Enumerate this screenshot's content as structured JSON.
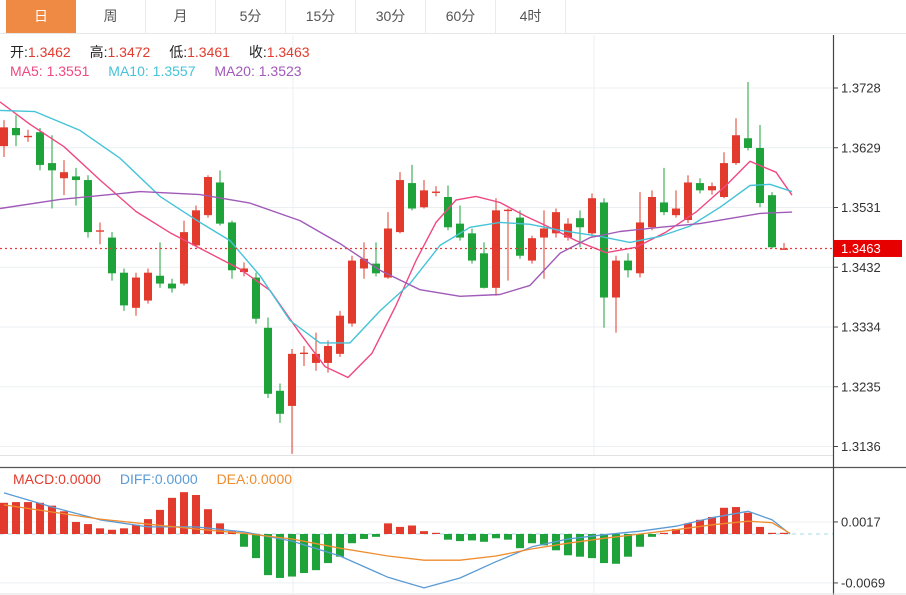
{
  "tabs": {
    "items": [
      {
        "label": "日",
        "active": true
      },
      {
        "label": "周",
        "active": false
      },
      {
        "label": "月",
        "active": false
      },
      {
        "label": "5分",
        "active": false
      },
      {
        "label": "15分",
        "active": false
      },
      {
        "label": "30分",
        "active": false
      },
      {
        "label": "60分",
        "active": false
      },
      {
        "label": "4时",
        "active": false
      }
    ]
  },
  "quote": {
    "open_label": "开:",
    "open": "1.3462",
    "high_label": "高:",
    "high": "1.3472",
    "low_label": "低:",
    "low": "1.3461",
    "close_label": "收:",
    "close": "1.3463"
  },
  "ma_info": {
    "ma5_label": "MA5:",
    "ma5": "1.3551",
    "ma10_label": "MA10:",
    "ma10": "1.3557",
    "ma20_label": "MA20:",
    "ma20": "1.3523"
  },
  "macd_info": {
    "macd_label": "MACD:",
    "macd": "0.0000",
    "diff_label": "DIFF:",
    "diff": "0.0000",
    "dea_label": "DEA:",
    "dea": "0.0000"
  },
  "colors": {
    "up": "#e23b2e",
    "down": "#1ea33b",
    "tab_active_bg": "#ef8a45",
    "ma5": "#ef4883",
    "ma10": "#45c3d8",
    "ma20": "#a05ab8",
    "diff": "#5b9bd5",
    "dea": "#ee8c2e",
    "badge_bg": "#e60000",
    "badge_text": "#ffffff",
    "grid": "#eceff1",
    "axis_line": "#444444",
    "axis_text": "#333333",
    "price_dotted": "#e23b3b",
    "zero_dashed": "#a6d9e8"
  },
  "chart_data": {
    "type": "candlestick",
    "title": "",
    "legend": [
      "MA5",
      "MA10",
      "MA20",
      "MACD",
      "DIFF",
      "DEA"
    ],
    "main_panel": {
      "price_axis_ticks": [
        1.3728,
        1.3629,
        1.3531,
        1.3432,
        1.3334,
        1.3235,
        1.3136
      ],
      "current_price": 1.3463,
      "current_price_label": "1.3463",
      "grid_vertical_x": [
        293,
        594
      ],
      "candles_ohlc": [
        [
          1.3632,
          1.3675,
          1.3614,
          1.3663
        ],
        [
          1.3662,
          1.3683,
          1.3632,
          1.365
        ],
        [
          1.3648,
          1.3659,
          1.3639,
          1.3649
        ],
        [
          1.3655,
          1.3662,
          1.3592,
          1.3601
        ],
        [
          1.3604,
          1.365,
          1.3529,
          1.3592
        ],
        [
          1.3579,
          1.3609,
          1.3551,
          1.3589
        ],
        [
          1.3582,
          1.3596,
          1.3534,
          1.3576
        ],
        [
          1.3576,
          1.3584,
          1.3481,
          1.349
        ],
        [
          1.3492,
          1.3506,
          1.347,
          1.3493
        ],
        [
          1.3481,
          1.349,
          1.341,
          1.3422
        ],
        [
          1.3423,
          1.343,
          1.336,
          1.3369
        ],
        [
          1.3365,
          1.3423,
          1.3352,
          1.3415
        ],
        [
          1.3377,
          1.343,
          1.3372,
          1.3423
        ],
        [
          1.3418,
          1.3473,
          1.3398,
          1.3405
        ],
        [
          1.3405,
          1.3413,
          1.339,
          1.3397
        ],
        [
          1.3405,
          1.3509,
          1.3402,
          1.349
        ],
        [
          1.3468,
          1.3534,
          1.3465,
          1.3526
        ],
        [
          1.3518,
          1.3584,
          1.3514,
          1.3581
        ],
        [
          1.3572,
          1.3592,
          1.3501,
          1.3504
        ],
        [
          1.3506,
          1.3509,
          1.3413,
          1.3427
        ],
        [
          1.3424,
          1.344,
          1.3417,
          1.343
        ],
        [
          1.3415,
          1.3423,
          1.3339,
          1.3347
        ],
        [
          1.3332,
          1.3349,
          1.3216,
          1.3223
        ],
        [
          1.3228,
          1.324,
          1.3175,
          1.319
        ],
        [
          1.3203,
          1.3297,
          1.3124,
          1.3289
        ],
        [
          1.3289,
          1.3302,
          1.3269,
          1.3291
        ],
        [
          1.3274,
          1.3324,
          1.3261,
          1.3289
        ],
        [
          1.3274,
          1.3311,
          1.3258,
          1.3302
        ],
        [
          1.3289,
          1.336,
          1.3284,
          1.3352
        ],
        [
          1.3339,
          1.3451,
          1.3334,
          1.3443
        ],
        [
          1.343,
          1.3473,
          1.3413,
          1.3446
        ],
        [
          1.3438,
          1.3473,
          1.3417,
          1.3422
        ],
        [
          1.3415,
          1.3523,
          1.3413,
          1.3496
        ],
        [
          1.349,
          1.3589,
          1.3488,
          1.3576
        ],
        [
          1.3571,
          1.3601,
          1.3526,
          1.3529
        ],
        [
          1.3531,
          1.3576,
          1.3529,
          1.3559
        ],
        [
          1.3555,
          1.3566,
          1.3549,
          1.3557
        ],
        [
          1.3548,
          1.3567,
          1.3493,
          1.3498
        ],
        [
          1.3504,
          1.3534,
          1.3476,
          1.3481
        ],
        [
          1.3488,
          1.3496,
          1.3438,
          1.3443
        ],
        [
          1.3455,
          1.3473,
          1.3397,
          1.3398
        ],
        [
          1.3398,
          1.3546,
          1.3385,
          1.3526
        ],
        [
          1.3525,
          1.3529,
          1.341,
          1.3527
        ],
        [
          1.3514,
          1.3526,
          1.3446,
          1.3451
        ],
        [
          1.3443,
          1.3484,
          1.3438,
          1.348
        ],
        [
          1.3481,
          1.3526,
          1.3413,
          1.3496
        ],
        [
          1.3488,
          1.3529,
          1.3481,
          1.3523
        ],
        [
          1.3481,
          1.3513,
          1.3476,
          1.3504
        ],
        [
          1.3513,
          1.3526,
          1.3465,
          1.3498
        ],
        [
          1.3488,
          1.3554,
          1.3481,
          1.3546
        ],
        [
          1.3539,
          1.3546,
          1.3332,
          1.3382
        ],
        [
          1.3382,
          1.3451,
          1.3324,
          1.3443
        ],
        [
          1.3443,
          1.3455,
          1.3415,
          1.3427
        ],
        [
          1.3422,
          1.3556,
          1.3415,
          1.3506
        ],
        [
          1.3498,
          1.3559,
          1.3493,
          1.3548
        ],
        [
          1.3539,
          1.3596,
          1.3518,
          1.3523
        ],
        [
          1.3518,
          1.3559,
          1.3514,
          1.3529
        ],
        [
          1.351,
          1.3584,
          1.3505,
          1.3572
        ],
        [
          1.3571,
          1.3579,
          1.3554,
          1.3559
        ],
        [
          1.3559,
          1.3572,
          1.3552,
          1.3566
        ],
        [
          1.3548,
          1.3622,
          1.3546,
          1.3604
        ],
        [
          1.3604,
          1.3678,
          1.3601,
          1.365
        ],
        [
          1.3645,
          1.3738,
          1.3625,
          1.3629
        ],
        [
          1.3629,
          1.3667,
          1.3531,
          1.3538
        ],
        [
          1.3551,
          1.3556,
          1.3463,
          1.3465
        ],
        [
          1.3462,
          1.3472,
          1.3461,
          1.3463
        ]
      ],
      "ma5_line": [
        [
          0,
          1.3705
        ],
        [
          30,
          1.3668
        ],
        [
          64,
          1.3631
        ],
        [
          100,
          1.3576
        ],
        [
          136,
          1.3524
        ],
        [
          170,
          1.3489
        ],
        [
          205,
          1.3459
        ],
        [
          240,
          1.3429
        ],
        [
          270,
          1.3394
        ],
        [
          300,
          1.3323
        ],
        [
          325,
          1.3268
        ],
        [
          348,
          1.325
        ],
        [
          372,
          1.329
        ],
        [
          396,
          1.3369
        ],
        [
          416,
          1.3443
        ],
        [
          436,
          1.3506
        ],
        [
          456,
          1.3543
        ],
        [
          476,
          1.3549
        ],
        [
          500,
          1.3539
        ],
        [
          526,
          1.3516
        ],
        [
          552,
          1.3496
        ],
        [
          576,
          1.3476
        ],
        [
          606,
          1.3456
        ],
        [
          636,
          1.3465
        ],
        [
          666,
          1.349
        ],
        [
          696,
          1.3523
        ],
        [
          726,
          1.3567
        ],
        [
          750,
          1.3607
        ],
        [
          776,
          1.3589
        ],
        [
          792,
          1.3551
        ]
      ],
      "ma10_line": [
        [
          0,
          1.3691
        ],
        [
          35,
          1.3689
        ],
        [
          80,
          1.3658
        ],
        [
          120,
          1.3612
        ],
        [
          160,
          1.3549
        ],
        [
          200,
          1.3506
        ],
        [
          230,
          1.3476
        ],
        [
          260,
          1.3418
        ],
        [
          290,
          1.3344
        ],
        [
          320,
          1.3307
        ],
        [
          350,
          1.3307
        ],
        [
          380,
          1.336
        ],
        [
          410,
          1.3405
        ],
        [
          440,
          1.3468
        ],
        [
          470,
          1.3498
        ],
        [
          500,
          1.3506
        ],
        [
          530,
          1.3503
        ],
        [
          560,
          1.3493
        ],
        [
          600,
          1.3483
        ],
        [
          630,
          1.3473
        ],
        [
          660,
          1.3483
        ],
        [
          690,
          1.35
        ],
        [
          720,
          1.3531
        ],
        [
          750,
          1.3567
        ],
        [
          770,
          1.3569
        ],
        [
          792,
          1.3557
        ]
      ],
      "ma20_line": [
        [
          0,
          1.3529
        ],
        [
          60,
          1.3544
        ],
        [
          140,
          1.3557
        ],
        [
          200,
          1.3552
        ],
        [
          250,
          1.3538
        ],
        [
          300,
          1.3509
        ],
        [
          340,
          1.3471
        ],
        [
          380,
          1.3427
        ],
        [
          420,
          1.3395
        ],
        [
          460,
          1.3384
        ],
        [
          500,
          1.3387
        ],
        [
          530,
          1.3402
        ],
        [
          560,
          1.3455
        ],
        [
          590,
          1.3481
        ],
        [
          620,
          1.3491
        ],
        [
          660,
          1.3498
        ],
        [
          700,
          1.3504
        ],
        [
          760,
          1.3521
        ],
        [
          792,
          1.3523
        ]
      ]
    },
    "macd_panel": {
      "axis_ticks": [
        0.0017,
        -0.0069
      ],
      "axis_tick_labels": [
        "0.0017",
        "-0.0069"
      ],
      "histogram": [
        0.0044,
        0.0045,
        0.0045,
        0.0044,
        0.004,
        0.0032,
        0.0017,
        0.0014,
        0.0008,
        0.0006,
        0.0008,
        0.0013,
        0.0021,
        0.0034,
        0.0051,
        0.0059,
        0.0055,
        0.0035,
        0.0015,
        0.0004,
        -0.0018,
        -0.0034,
        -0.0058,
        -0.0062,
        -0.006,
        -0.0055,
        -0.0051,
        -0.0041,
        -0.0032,
        -0.0013,
        -0.0007,
        -0.0004,
        0.0015,
        0.001,
        0.0012,
        0.0004,
        0.0001,
        -0.0008,
        -0.001,
        -0.0009,
        -0.0011,
        -0.0006,
        -0.0008,
        -0.002,
        -0.0013,
        -0.0016,
        -0.0023,
        -0.003,
        -0.0032,
        -0.0034,
        -0.0041,
        -0.0042,
        -0.0032,
        -0.0018,
        -0.0004,
        0.0001,
        0.0007,
        0.0015,
        0.002,
        0.0024,
        0.0037,
        0.0038,
        0.003,
        0.001,
        0.0001,
        0.0
      ],
      "diff_line": [
        [
          4,
          0.0058
        ],
        [
          52,
          0.0038
        ],
        [
          100,
          0.002
        ],
        [
          148,
          0.001
        ],
        [
          196,
          0.001
        ],
        [
          244,
          0.0003
        ],
        [
          292,
          -0.001
        ],
        [
          340,
          -0.0031
        ],
        [
          388,
          -0.0061
        ],
        [
          424,
          -0.0076
        ],
        [
          460,
          -0.0062
        ],
        [
          496,
          -0.0039
        ],
        [
          532,
          -0.0018
        ],
        [
          568,
          -0.0007
        ],
        [
          604,
          -0.0001
        ],
        [
          640,
          0.0004
        ],
        [
          676,
          0.0011
        ],
        [
          712,
          0.0023
        ],
        [
          748,
          0.0032
        ],
        [
          772,
          0.002
        ],
        [
          790,
          0.0
        ]
      ],
      "dea_line": [
        [
          4,
          0.0041
        ],
        [
          52,
          0.0031
        ],
        [
          100,
          0.0021
        ],
        [
          148,
          0.0014
        ],
        [
          196,
          0.0007
        ],
        [
          244,
          0.0001
        ],
        [
          292,
          -0.0007
        ],
        [
          340,
          -0.002
        ],
        [
          388,
          -0.0031
        ],
        [
          424,
          -0.0037
        ],
        [
          460,
          -0.0037
        ],
        [
          496,
          -0.0031
        ],
        [
          532,
          -0.0021
        ],
        [
          568,
          -0.0013
        ],
        [
          604,
          -0.0006
        ],
        [
          640,
          0.0
        ],
        [
          676,
          0.0006
        ],
        [
          712,
          0.0013
        ],
        [
          748,
          0.0018
        ],
        [
          772,
          0.0016
        ],
        [
          790,
          0.0001
        ]
      ]
    }
  }
}
